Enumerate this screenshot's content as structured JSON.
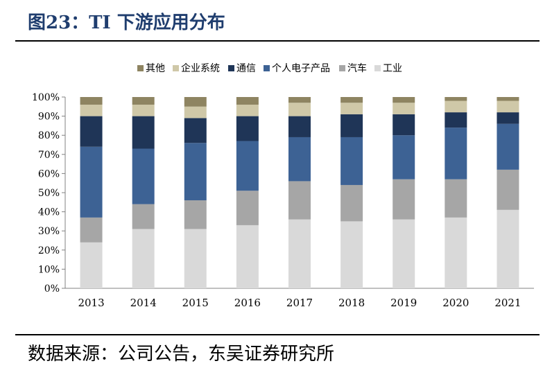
{
  "figure": {
    "title": "图23：TI 下游应用分布",
    "source": "数据来源：公司公告，东吴证券研究所"
  },
  "colors": {
    "title": "#1f3d6e",
    "series": [
      "#d9d9d9",
      "#a6a6a6",
      "#3d6294",
      "#1f3557",
      "#cfc8a8",
      "#8e8461"
    ],
    "axis": "#808080"
  },
  "chart_data": {
    "type": "bar",
    "stacked": true,
    "categories": [
      "2013",
      "2014",
      "2015",
      "2016",
      "2017",
      "2018",
      "2019",
      "2020",
      "2021"
    ],
    "series": [
      {
        "name": "工业",
        "values": [
          24,
          31,
          31,
          33,
          36,
          35,
          36,
          37,
          41
        ]
      },
      {
        "name": "汽车",
        "values": [
          13,
          13,
          15,
          18,
          20,
          19,
          21,
          20,
          21
        ]
      },
      {
        "name": "个人电子产品",
        "values": [
          37,
          29,
          30,
          26,
          23,
          25,
          23,
          27,
          24
        ]
      },
      {
        "name": "通信",
        "values": [
          16,
          17,
          13,
          13,
          11,
          12,
          11,
          8,
          6
        ]
      },
      {
        "name": "企业系统",
        "values": [
          6,
          6,
          6,
          6,
          7,
          6,
          6,
          6,
          6
        ]
      },
      {
        "name": "其他",
        "values": [
          4,
          4,
          5,
          4,
          3,
          3,
          3,
          2,
          2
        ]
      }
    ],
    "legend_order": [
      "其他",
      "企业系统",
      "通信",
      "个人电子产品",
      "汽车",
      "工业"
    ],
    "legend_position": "top",
    "ylim": [
      0,
      100
    ],
    "yticks": [
      "0%",
      "10%",
      "20%",
      "30%",
      "40%",
      "50%",
      "60%",
      "70%",
      "80%",
      "90%",
      "100%"
    ],
    "grid": false
  }
}
